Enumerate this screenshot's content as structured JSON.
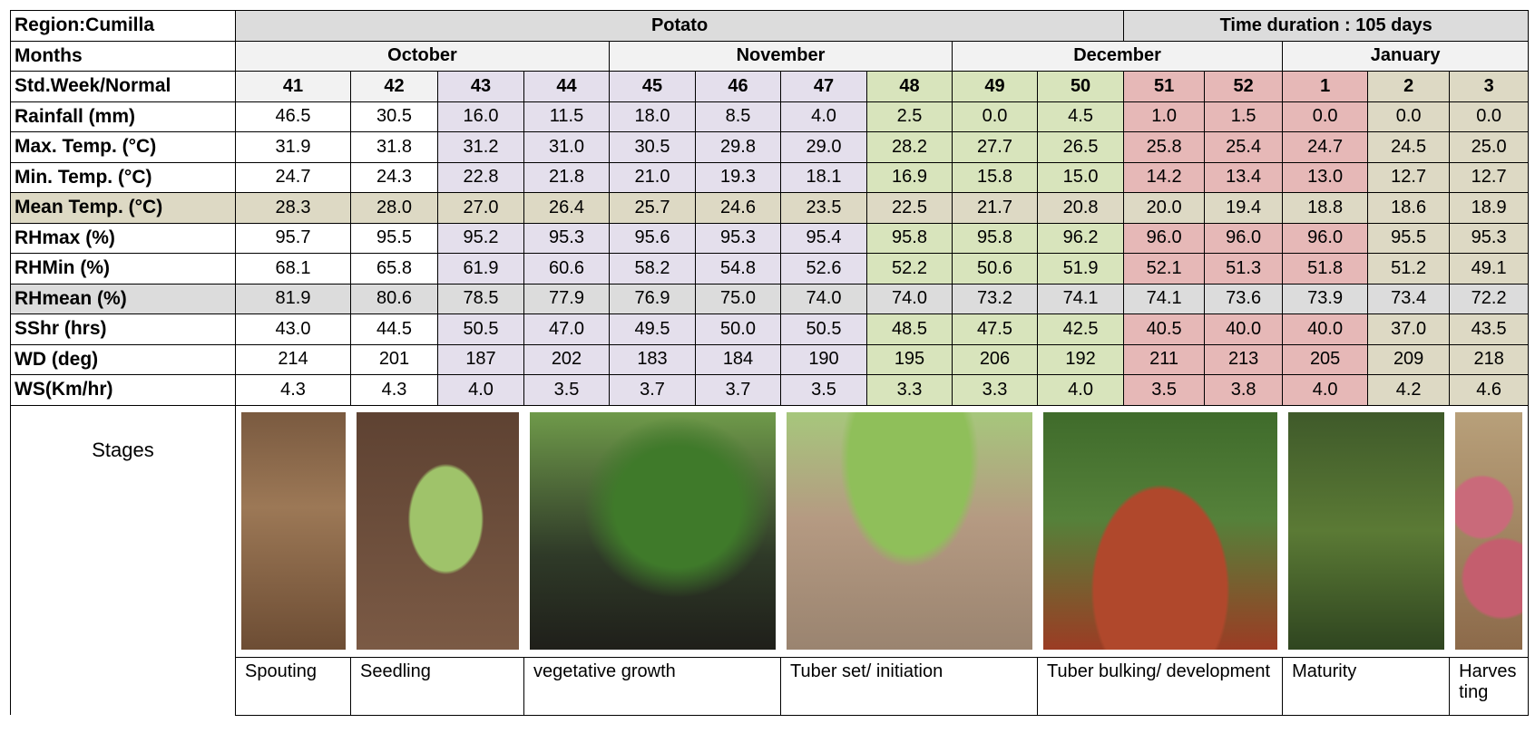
{
  "region": "Region:Cumilla",
  "crop": "Potato",
  "duration": "Time duration : 105 days",
  "months_label": "Months",
  "months": [
    "October",
    "November",
    "December",
    "January"
  ],
  "week_label": "Std.Week/Normal",
  "weeks": [
    "41",
    "42",
    "43",
    "44",
    "45",
    "46",
    "47",
    "48",
    "49",
    "50",
    "51",
    "52",
    "1",
    "2",
    "3"
  ],
  "rows": [
    {
      "label": "Rainfall (mm)",
      "values": [
        "46.5",
        "30.5",
        "16.0",
        "11.5",
        "18.0",
        "8.5",
        "4.0",
        "2.5",
        "0.0",
        "4.5",
        "1.0",
        "1.5",
        "0.0",
        "0.0",
        "0.0"
      ]
    },
    {
      "label": "Max. Temp. (°C)",
      "values": [
        "31.9",
        "31.8",
        "31.2",
        "31.0",
        "30.5",
        "29.8",
        "29.0",
        "28.2",
        "27.7",
        "26.5",
        "25.8",
        "25.4",
        "24.7",
        "24.5",
        "25.0"
      ]
    },
    {
      "label": "Min. Temp. (°C)",
      "values": [
        "24.7",
        "24.3",
        "22.8",
        "21.8",
        "21.0",
        "19.3",
        "18.1",
        "16.9",
        "15.8",
        "15.0",
        "14.2",
        "13.4",
        "13.0",
        "12.7",
        "12.7"
      ]
    },
    {
      "label": "Mean Temp. (°C)",
      "values": [
        "28.3",
        "28.0",
        "27.0",
        "26.4",
        "25.7",
        "24.6",
        "23.5",
        "22.5",
        "21.7",
        "20.8",
        "20.0",
        "19.4",
        "18.8",
        "18.6",
        "18.9"
      ]
    },
    {
      "label": "RHmax (%)",
      "values": [
        "95.7",
        "95.5",
        "95.2",
        "95.3",
        "95.6",
        "95.3",
        "95.4",
        "95.8",
        "95.8",
        "96.2",
        "96.0",
        "96.0",
        "96.0",
        "95.5",
        "95.3"
      ]
    },
    {
      "label": "RHMin (%)",
      "values": [
        "68.1",
        "65.8",
        "61.9",
        "60.6",
        "58.2",
        "54.8",
        "52.6",
        "52.2",
        "50.6",
        "51.9",
        "52.1",
        "51.3",
        "51.8",
        "51.2",
        "49.1"
      ]
    },
    {
      "label": "RHmean (%)",
      "values": [
        "81.9",
        "80.6",
        "78.5",
        "77.9",
        "76.9",
        "75.0",
        "74.0",
        "74.0",
        "73.2",
        "74.1",
        "74.1",
        "73.6",
        "73.9",
        "73.4",
        "72.2"
      ]
    },
    {
      "label": "SShr (hrs)",
      "values": [
        "43.0",
        "44.5",
        "50.5",
        "47.0",
        "49.5",
        "50.0",
        "50.5",
        "48.5",
        "47.5",
        "42.5",
        "40.5",
        "40.0",
        "40.0",
        "37.0",
        "43.5"
      ]
    },
    {
      "label": "WD (deg)",
      "values": [
        "214",
        "201",
        "187",
        "202",
        "183",
        "184",
        "190",
        "195",
        "206",
        "192",
        "211",
        "213",
        "205",
        "209",
        "218"
      ]
    },
    {
      "label": "WS(Km/hr)",
      "values": [
        "4.3",
        "4.3",
        "4.0",
        "3.5",
        "3.7",
        "3.7",
        "3.5",
        "3.3",
        "3.3",
        "4.0",
        "3.5",
        "3.8",
        "4.0",
        "4.2",
        "4.6"
      ]
    }
  ],
  "stages_label": "Stages",
  "stages": [
    "Spouting",
    "Seedling",
    "vegetative growth",
    "Tuber set/ initiation",
    "Tuber bulking/ development",
    "Maturity",
    "Harvesting"
  ]
}
